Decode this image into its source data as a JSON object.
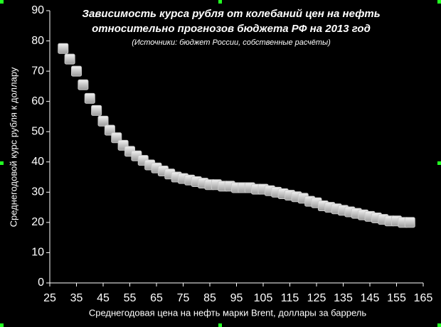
{
  "chart_data": {
    "type": "scatter",
    "title": [
      "Зависимость курса рубля от колебаний цен на нефть",
      "относительно прогнозов бюджета РФ на 2013 год"
    ],
    "subtitle": "(Источники: бюджет России, собственные расчёты)",
    "x_label": "Среднегодовая цена на нефть марки Brent, доллары за баррель",
    "y_label": "Среднегодовой курс рубля к доллару",
    "x": [
      30,
      32.5,
      35,
      37.5,
      40,
      42.5,
      45,
      47.5,
      50,
      52.5,
      55,
      57.5,
      60,
      62.5,
      65,
      67.5,
      70,
      72.5,
      75,
      77.5,
      80,
      82.5,
      85,
      87.5,
      90,
      92.5,
      95,
      97.5,
      100,
      102.5,
      105,
      107.5,
      110,
      112.5,
      115,
      117.5,
      120,
      122.5,
      125,
      127.5,
      130,
      132.5,
      135,
      137.5,
      140,
      142.5,
      145,
      147.5,
      150,
      152.5,
      155,
      157.5,
      160
    ],
    "values": [
      77.5,
      74,
      70,
      65.5,
      61,
      57,
      53.5,
      50.5,
      48,
      45.5,
      43.5,
      42,
      40.5,
      39,
      38,
      37,
      36,
      35,
      34.5,
      34,
      33.5,
      33,
      32.5,
      32.5,
      32,
      32,
      31.5,
      31.5,
      31.5,
      31,
      31,
      30.5,
      30,
      29.5,
      29,
      28.5,
      28,
      27,
      26.5,
      25.5,
      25,
      24.5,
      24,
      23.5,
      23,
      22.5,
      22,
      21.5,
      21,
      20.5,
      20.5,
      20,
      20
    ],
    "color": "#c8c8c8",
    "xlim": [
      25,
      165
    ],
    "xticks": [
      25,
      35,
      45,
      55,
      65,
      75,
      85,
      95,
      105,
      115,
      125,
      135,
      145,
      155,
      165
    ],
    "ylim": [
      0,
      90
    ],
    "yticks": [
      0,
      10,
      20,
      30,
      40,
      50,
      60,
      70,
      80,
      90
    ]
  }
}
